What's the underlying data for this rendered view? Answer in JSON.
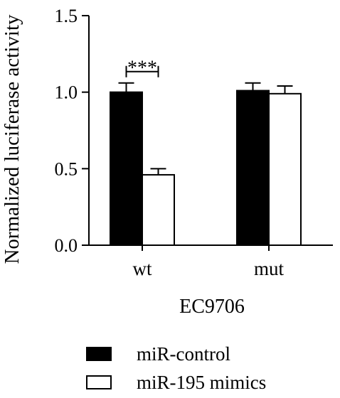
{
  "chart_data": {
    "type": "bar",
    "categories": [
      "wt",
      "mut"
    ],
    "series": [
      {
        "name": "miR-control",
        "values": [
          1.0,
          1.01
        ],
        "errors": [
          0.06,
          0.05
        ],
        "fill": "#000000"
      },
      {
        "name": "miR-195 mimics",
        "values": [
          0.46,
          0.99
        ],
        "errors": [
          0.04,
          0.05
        ],
        "fill": "#ffffff"
      }
    ],
    "title": "",
    "xlabel": "EC9706",
    "ylabel": "Normalized luciferase activity",
    "ylim": [
      0,
      1.5
    ],
    "yticks": [
      0.0,
      0.5,
      1.0,
      1.5
    ],
    "ytick_labels": [
      "0.0",
      "0.5",
      "1.0",
      "1.5"
    ],
    "grid": false,
    "legend": "bottom",
    "annotations": [
      {
        "text": "***",
        "category": "wt",
        "between_series": [
          0,
          1
        ]
      }
    ]
  }
}
